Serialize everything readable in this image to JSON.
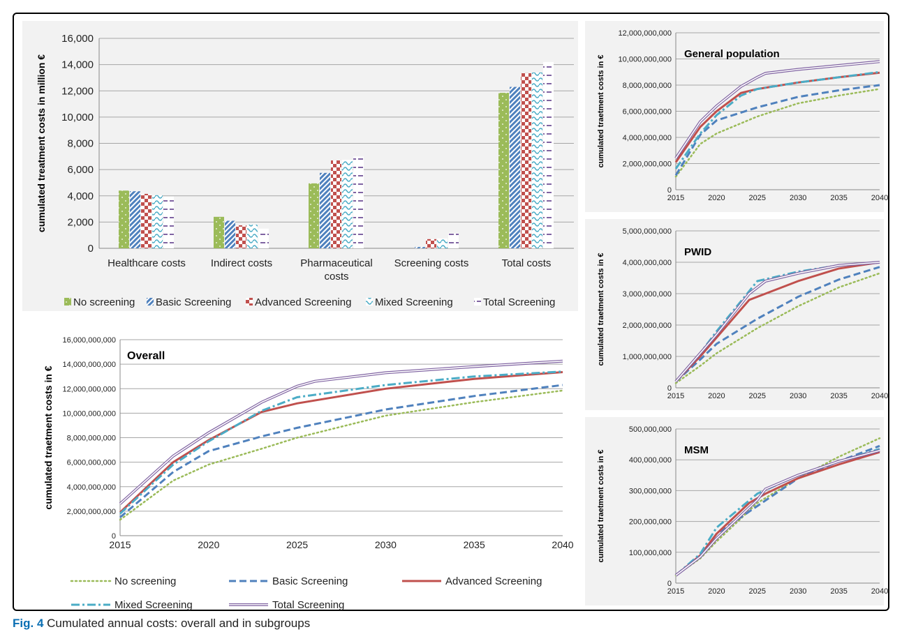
{
  "caption": {
    "label": "Fig. 4",
    "text": "Cumulated annual costs: overall and in subgroups"
  },
  "colors": {
    "no_screening": "#9bbb59",
    "basic_screening": "#4f81bd",
    "advanced_screening": "#c0504d",
    "mixed_screening": "#4bacc6",
    "total_screening": "#8064a2"
  },
  "chart_data": [
    {
      "id": "bars",
      "type": "bar",
      "title": "",
      "ylabel": "cumulated treatment costs in million €",
      "ylim": [
        0,
        16000
      ],
      "yticks": [
        "0",
        "2,000",
        "4,000",
        "6,000",
        "8,000",
        "10,000",
        "12,000",
        "14,000",
        "16,000"
      ],
      "categories": [
        "Healthcare costs",
        "Indirect costs",
        "Pharmaceutical costs",
        "Screening costs",
        "Total costs"
      ],
      "category_lines": [
        [
          "Healthcare costs"
        ],
        [
          "Indirect costs"
        ],
        [
          "Pharmaceutical",
          "costs"
        ],
        [
          "Screening costs"
        ],
        [
          "Total costs"
        ]
      ],
      "legend_position": "bottom",
      "series": [
        {
          "name": "No screening",
          "values": [
            4400,
            2400,
            4950,
            0,
            11850
          ]
        },
        {
          "name": "Basic Screening",
          "values": [
            4350,
            2100,
            5750,
            100,
            12300
          ]
        },
        {
          "name": "Advanced Screening",
          "values": [
            4150,
            1750,
            6700,
            700,
            13350
          ]
        },
        {
          "name": "Mixed Screening",
          "values": [
            4050,
            1800,
            6750,
            750,
            13400
          ]
        },
        {
          "name": "Total Screening",
          "values": [
            3950,
            1500,
            7000,
            1150,
            14200
          ]
        }
      ]
    },
    {
      "id": "overall",
      "type": "line",
      "title": "Overall",
      "ylabel": "cumulated traetment costs in €",
      "xlim": [
        2015,
        2040
      ],
      "ylim": [
        0,
        16000000000
      ],
      "xticks": [
        "2015",
        "2020",
        "2025",
        "2030",
        "2035",
        "2040"
      ],
      "yticks": [
        "0",
        "2,000,000,000",
        "4,000,000,000",
        "6,000,000,000",
        "8,000,000,000",
        "10,000,000,000",
        "12,000,000,000",
        "14,000,000,000",
        "16,000,000,000"
      ],
      "legend_position": "bottom",
      "series": [
        {
          "name": "No screening",
          "x": [
            2015,
            2018,
            2020,
            2023,
            2025,
            2030,
            2035,
            2040
          ],
          "y": [
            1300000000,
            4500000000,
            5800000000,
            7100000000,
            8000000000,
            9800000000,
            10900000000,
            11850000000
          ]
        },
        {
          "name": "Basic Screening",
          "x": [
            2015,
            2018,
            2020,
            2023,
            2025,
            2030,
            2035,
            2040
          ],
          "y": [
            1500000000,
            5200000000,
            6900000000,
            8100000000,
            8800000000,
            10300000000,
            11400000000,
            12300000000
          ]
        },
        {
          "name": "Advanced Screening",
          "x": [
            2015,
            2018,
            2020,
            2023,
            2025,
            2030,
            2035,
            2040
          ],
          "y": [
            1900000000,
            6000000000,
            7800000000,
            10100000000,
            10800000000,
            12000000000,
            12800000000,
            13350000000
          ]
        },
        {
          "name": "Mixed Screening",
          "x": [
            2015,
            2018,
            2020,
            2023,
            2025,
            2030,
            2035,
            2040
          ],
          "y": [
            1800000000,
            5800000000,
            7700000000,
            10200000000,
            11300000000,
            12300000000,
            13000000000,
            13400000000
          ]
        },
        {
          "name": "Total Screening",
          "x": [
            2015,
            2018,
            2020,
            2023,
            2025,
            2026,
            2030,
            2035,
            2040
          ],
          "y": [
            2600000000,
            6500000000,
            8400000000,
            10900000000,
            12200000000,
            12600000000,
            13300000000,
            13800000000,
            14250000000
          ]
        }
      ]
    },
    {
      "id": "general",
      "type": "line",
      "title": "General population",
      "ylabel": "cumulated traetment costs in €",
      "xlim": [
        2015,
        2040
      ],
      "ylim": [
        0,
        12000000000
      ],
      "xticks": [
        "2015",
        "2020",
        "2025",
        "2030",
        "2035",
        "2040"
      ],
      "yticks": [
        "0",
        "2,000,000,000",
        "4,000,000,000",
        "6,000,000,000",
        "8,000,000,000",
        "10,000,000,000",
        "12,000,000,000"
      ],
      "series": [
        {
          "name": "No screening",
          "x": [
            2015,
            2018,
            2020,
            2025,
            2030,
            2035,
            2040
          ],
          "y": [
            1000000000,
            3500000000,
            4300000000,
            5600000000,
            6600000000,
            7200000000,
            7700000000
          ]
        },
        {
          "name": "Basic Screening",
          "x": [
            2015,
            2018,
            2020,
            2023,
            2025,
            2030,
            2035,
            2040
          ],
          "y": [
            1100000000,
            4200000000,
            5300000000,
            5900000000,
            6300000000,
            7100000000,
            7600000000,
            8000000000
          ]
        },
        {
          "name": "Advanced Screening",
          "x": [
            2015,
            2018,
            2020,
            2023,
            2025,
            2030,
            2035,
            2040
          ],
          "y": [
            2100000000,
            4800000000,
            6000000000,
            7400000000,
            7700000000,
            8200000000,
            8600000000,
            8950000000
          ]
        },
        {
          "name": "Mixed Screening",
          "x": [
            2015,
            2018,
            2020,
            2023,
            2025,
            2030,
            2035,
            2040
          ],
          "y": [
            1600000000,
            4300000000,
            5700000000,
            7200000000,
            7700000000,
            8200000000,
            8600000000,
            9000000000
          ]
        },
        {
          "name": "Total Screening",
          "x": [
            2015,
            2018,
            2020,
            2023,
            2025,
            2026,
            2030,
            2035,
            2040
          ],
          "y": [
            2400000000,
            5200000000,
            6400000000,
            7900000000,
            8600000000,
            8900000000,
            9200000000,
            9500000000,
            9800000000
          ]
        }
      ]
    },
    {
      "id": "pwid",
      "type": "line",
      "title": "PWID",
      "ylabel": "cumulated traetment costs in €",
      "xlim": [
        2015,
        2040
      ],
      "ylim": [
        0,
        5000000000
      ],
      "xticks": [
        "2015",
        "2020",
        "2025",
        "2030",
        "2035",
        "2040"
      ],
      "yticks": [
        "0",
        "1,000,000,000",
        "2,000,000,000",
        "3,000,000,000",
        "4,000,000,000",
        "5,000,000,000"
      ],
      "series": [
        {
          "name": "No screening",
          "x": [
            2015,
            2018,
            2020,
            2025,
            2030,
            2035,
            2040
          ],
          "y": [
            150000000,
            700000000,
            1100000000,
            1900000000,
            2600000000,
            3200000000,
            3650000000
          ]
        },
        {
          "name": "Basic Screening",
          "x": [
            2015,
            2018,
            2020,
            2025,
            2030,
            2035,
            2040
          ],
          "y": [
            200000000,
            900000000,
            1400000000,
            2200000000,
            2900000000,
            3450000000,
            3850000000
          ]
        },
        {
          "name": "Advanced Screening",
          "x": [
            2015,
            2018,
            2020,
            2024,
            2026,
            2030,
            2035,
            2040
          ],
          "y": [
            200000000,
            1000000000,
            1600000000,
            2800000000,
            3000000000,
            3400000000,
            3800000000,
            4000000000
          ]
        },
        {
          "name": "Mixed Screening",
          "x": [
            2015,
            2018,
            2020,
            2025,
            2030,
            2035,
            2040
          ],
          "y": [
            200000000,
            1100000000,
            1800000000,
            3400000000,
            3700000000,
            3900000000,
            4000000000
          ]
        },
        {
          "name": "Total Screening",
          "x": [
            2015,
            2018,
            2020,
            2024,
            2026,
            2030,
            2035,
            2040
          ],
          "y": [
            200000000,
            1100000000,
            1700000000,
            3000000000,
            3400000000,
            3650000000,
            3900000000,
            4000000000
          ]
        }
      ]
    },
    {
      "id": "msm",
      "type": "line",
      "title": "MSM",
      "ylabel": "cumulated traetment costs in €",
      "xlim": [
        2015,
        2040
      ],
      "ylim": [
        0,
        500000000
      ],
      "xticks": [
        "2015",
        "2020",
        "2025",
        "2030",
        "2035",
        "2040"
      ],
      "yticks": [
        "0",
        "100,000,000",
        "200,000,000",
        "300,000,000",
        "400,000,000",
        "500,000,000"
      ],
      "series": [
        {
          "name": "No screening",
          "x": [
            2015,
            2018,
            2020,
            2025,
            2030,
            2035,
            2040
          ],
          "y": [
            25000000,
            80000000,
            135000000,
            260000000,
            340000000,
            410000000,
            470000000
          ]
        },
        {
          "name": "Basic Screening",
          "x": [
            2015,
            2018,
            2020,
            2025,
            2030,
            2035,
            2040
          ],
          "y": [
            25000000,
            85000000,
            160000000,
            250000000,
            340000000,
            395000000,
            445000000
          ]
        },
        {
          "name": "Advanced Screening",
          "x": [
            2015,
            2018,
            2020,
            2024,
            2026,
            2030,
            2035,
            2040
          ],
          "y": [
            25000000,
            90000000,
            160000000,
            260000000,
            290000000,
            340000000,
            385000000,
            425000000
          ]
        },
        {
          "name": "Mixed Screening",
          "x": [
            2015,
            2018,
            2020,
            2025,
            2030,
            2035,
            2040
          ],
          "y": [
            25000000,
            95000000,
            180000000,
            290000000,
            350000000,
            395000000,
            435000000
          ]
        },
        {
          "name": "Total Screening",
          "x": [
            2015,
            2018,
            2020,
            2025,
            2026,
            2030,
            2035,
            2040
          ],
          "y": [
            25000000,
            85000000,
            145000000,
            270000000,
            305000000,
            350000000,
            395000000,
            430000000
          ]
        }
      ]
    }
  ]
}
